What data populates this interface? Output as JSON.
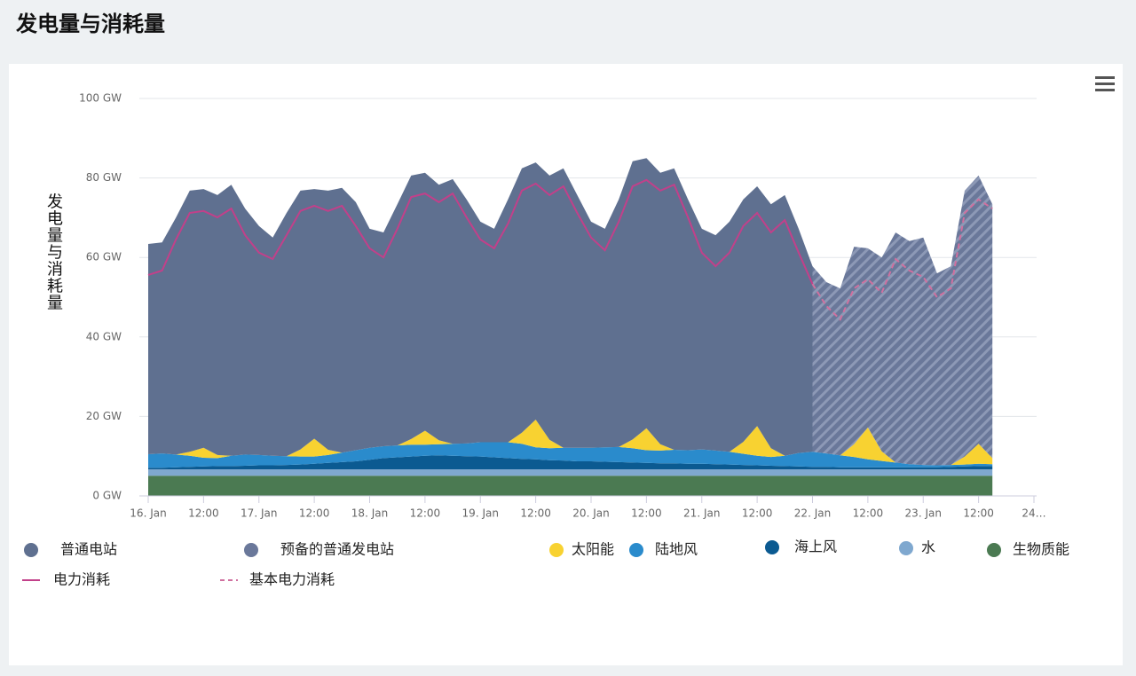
{
  "chart_data": {
    "type": "area",
    "stacked": true,
    "title": "发电量与消耗量",
    "y_label": "发电量与消耗量",
    "grid": true,
    "xlim": [
      "16. Jan 00:00",
      "24. Jan 00:00"
    ],
    "xticks": [
      {
        "value": "16. Jan 00:00",
        "label": "16. Jan"
      },
      {
        "value": "16. Jan 12:00",
        "label": "12:00"
      },
      {
        "value": "17. Jan 00:00",
        "label": "17. Jan"
      },
      {
        "value": "17. Jan 12:00",
        "label": "12:00"
      },
      {
        "value": "18. Jan 00:00",
        "label": "18. Jan"
      },
      {
        "value": "18. Jan 12:00",
        "label": "12:00"
      },
      {
        "value": "19. Jan 00:00",
        "label": "19. Jan"
      },
      {
        "value": "19. Jan 12:00",
        "label": "12:00"
      },
      {
        "value": "20. Jan 00:00",
        "label": "20. Jan"
      },
      {
        "value": "20. Jan 12:00",
        "label": "12:00"
      },
      {
        "value": "21. Jan 00:00",
        "label": "21. Jan"
      },
      {
        "value": "21. Jan 12:00",
        "label": "12:00"
      },
      {
        "value": "22. Jan 00:00",
        "label": "22. Jan"
      },
      {
        "value": "22. Jan 12:00",
        "label": "12:00"
      },
      {
        "value": "23. Jan 00:00",
        "label": "23. Jan"
      },
      {
        "value": "23. Jan 12:00",
        "label": "12:00"
      },
      {
        "value": "24. Jan 00:00",
        "label": "24…"
      }
    ],
    "ylim": [
      0,
      100
    ],
    "yticks": [
      {
        "value": 0,
        "label": "0 GW"
      },
      {
        "value": 20,
        "label": "20 GW"
      },
      {
        "value": 40,
        "label": "40 GW"
      },
      {
        "value": 60,
        "label": "60 GW"
      },
      {
        "value": 80,
        "label": "80 GW"
      },
      {
        "value": 100,
        "label": "100 GW"
      }
    ],
    "x": [
      "16. Jan 00:00",
      "16. Jan 03:00",
      "16. Jan 06:00",
      "16. Jan 09:00",
      "16. Jan 12:00",
      "16. Jan 15:00",
      "16. Jan 18:00",
      "16. Jan 21:00",
      "17. Jan 00:00",
      "17. Jan 03:00",
      "17. Jan 06:00",
      "17. Jan 09:00",
      "17. Jan 12:00",
      "17. Jan 15:00",
      "17. Jan 18:00",
      "17. Jan 21:00",
      "18. Jan 00:00",
      "18. Jan 03:00",
      "18. Jan 06:00",
      "18. Jan 09:00",
      "18. Jan 12:00",
      "18. Jan 15:00",
      "18. Jan 18:00",
      "18. Jan 21:00",
      "19. Jan 00:00",
      "19. Jan 03:00",
      "19. Jan 06:00",
      "19. Jan 09:00",
      "19. Jan 12:00",
      "19. Jan 15:00",
      "19. Jan 18:00",
      "19. Jan 21:00",
      "20. Jan 00:00",
      "20. Jan 03:00",
      "20. Jan 06:00",
      "20. Jan 09:00",
      "20. Jan 12:00",
      "20. Jan 15:00",
      "20. Jan 18:00",
      "20. Jan 21:00",
      "21. Jan 00:00",
      "21. Jan 03:00",
      "21. Jan 06:00",
      "21. Jan 09:00",
      "21. Jan 12:00",
      "21. Jan 15:00",
      "21. Jan 18:00",
      "21. Jan 21:00",
      "22. Jan 00:00",
      "22. Jan 03:00",
      "22. Jan 06:00",
      "22. Jan 09:00",
      "22. Jan 12:00",
      "22. Jan 15:00",
      "22. Jan 18:00",
      "22. Jan 21:00",
      "23. Jan 00:00",
      "23. Jan 03:00",
      "23. Jan 06:00",
      "23. Jan 09:00",
      "23. Jan 12:00",
      "23. Jan 15:00"
    ],
    "series": [
      {
        "name": "普通电站",
        "type": "area",
        "color": "#5f7090",
        "values": [
          52.9,
          53.1,
          59.6,
          65.7,
          65.1,
          65.4,
          68.2,
          61.9,
          57.6,
          54.9,
          61.2,
          65.1,
          62.8,
          65.2,
          66.6,
          62.4,
          55.1,
          53.8,
          60.7,
          66.3,
          64.9,
          64.3,
          66.6,
          61.4,
          55.5,
          53.7,
          61.1,
          66.5,
          64.7,
          66.5,
          70.3,
          63.6,
          56.9,
          55,
          62.3,
          70,
          68,
          68.3,
          70.8,
          63.1,
          55.5,
          54.2,
          57.9,
          61,
          60.3,
          61.4,
          65.6,
          56.4,
          46.7,
          null,
          null,
          null,
          null,
          null,
          null,
          null,
          null,
          null,
          null,
          null,
          null,
          null
        ]
      },
      {
        "name": "预备的普通发电站",
        "type": "area",
        "color": "#6a789a",
        "pattern": "hatched",
        "replaces": "普通电站",
        "values": [
          null,
          null,
          null,
          null,
          null,
          null,
          null,
          null,
          null,
          null,
          null,
          null,
          null,
          null,
          null,
          null,
          null,
          null,
          null,
          null,
          null,
          null,
          null,
          null,
          null,
          null,
          null,
          null,
          null,
          null,
          null,
          null,
          null,
          null,
          null,
          null,
          null,
          null,
          null,
          null,
          null,
          null,
          null,
          null,
          null,
          null,
          null,
          null,
          46.7,
          43.1,
          42,
          49.7,
          45.1,
          48.8,
          57.9,
          56.1,
          57.2,
          48.3,
          50,
          66.9,
          67.5,
          63.9
        ]
      },
      {
        "name": "太阳能",
        "type": "area",
        "color": "#f8d231",
        "values": [
          0,
          0,
          0,
          1,
          2.5,
          0.8,
          0,
          0,
          0,
          0,
          0,
          1.8,
          4.5,
          1.3,
          0,
          0,
          0,
          0,
          0,
          1.4,
          3.5,
          1,
          0,
          0,
          0,
          0,
          0,
          2.8,
          7,
          2.1,
          0,
          0,
          0,
          0,
          0,
          2.2,
          5.5,
          1.6,
          0,
          0,
          0,
          0,
          0,
          3,
          7.5,
          2.2,
          0,
          0,
          0,
          0,
          0,
          3.2,
          8,
          2.4,
          0,
          0,
          0,
          0,
          0,
          2,
          5,
          1.5
        ]
      },
      {
        "name": "陆地风",
        "type": "area",
        "color": "#2a8bcc",
        "values": [
          3.4,
          3.6,
          3.2,
          2.8,
          2.2,
          2,
          2.6,
          2.8,
          2.6,
          2.4,
          2.2,
          2,
          1.8,
          2,
          2.4,
          2.8,
          3,
          3,
          3,
          3,
          2.8,
          2.8,
          3,
          3.2,
          3.6,
          3.8,
          4,
          3.8,
          3,
          3,
          3.2,
          3.4,
          3.4,
          3.6,
          3.8,
          3.6,
          3.2,
          3.2,
          3.4,
          3.4,
          3.6,
          3.4,
          3.2,
          2.8,
          2.4,
          2.2,
          2.6,
          3.4,
          3.8,
          3.4,
          3,
          2.6,
          2,
          1.6,
          1.2,
          0.8,
          0.6,
          0.5,
          0.5,
          0.5,
          0.6,
          0.5
        ]
      },
      {
        "name": "海上风",
        "type": "area",
        "color": "#0b5a91",
        "values": [
          0.4,
          0.4,
          0.5,
          0.6,
          0.7,
          0.8,
          0.8,
          0.9,
          1,
          1,
          1.1,
          1.2,
          1.4,
          1.6,
          1.8,
          2,
          2.4,
          2.8,
          3,
          3.2,
          3.4,
          3.5,
          3.4,
          3.3,
          3.2,
          3,
          2.8,
          2.6,
          2.5,
          2.3,
          2.2,
          2,
          2,
          1.9,
          1.8,
          1.7,
          1.6,
          1.5,
          1.5,
          1.4,
          1.4,
          1.3,
          1.2,
          1.1,
          1,
          0.9,
          0.8,
          0.7,
          0.6,
          0.6,
          0.5,
          0.5,
          0.5,
          0.5,
          0.5,
          0.5,
          0.5,
          0.5,
          0.6,
          0.7,
          0.8,
          0.8
        ]
      },
      {
        "name": "水",
        "type": "area",
        "color": "#7fa8cf",
        "values": [
          1.6,
          1.6,
          1.6,
          1.6,
          1.6,
          1.6,
          1.6,
          1.6,
          1.6,
          1.6,
          1.6,
          1.6,
          1.6,
          1.6,
          1.6,
          1.6,
          1.6,
          1.6,
          1.6,
          1.6,
          1.6,
          1.6,
          1.6,
          1.6,
          1.6,
          1.6,
          1.6,
          1.6,
          1.6,
          1.6,
          1.6,
          1.6,
          1.6,
          1.6,
          1.6,
          1.6,
          1.6,
          1.6,
          1.6,
          1.6,
          1.6,
          1.6,
          1.6,
          1.6,
          1.6,
          1.6,
          1.6,
          1.6,
          1.6,
          1.6,
          1.6,
          1.6,
          1.6,
          1.6,
          1.6,
          1.6,
          1.6,
          1.6,
          1.6,
          1.6,
          1.6,
          1.6
        ]
      },
      {
        "name": "生物质能",
        "type": "area",
        "color": "#4b7a52",
        "values": [
          5.1,
          5.1,
          5.1,
          5.1,
          5.1,
          5.1,
          5.1,
          5.1,
          5.1,
          5.1,
          5.1,
          5.1,
          5.1,
          5.1,
          5.1,
          5.1,
          5.1,
          5.1,
          5.1,
          5.1,
          5.1,
          5.1,
          5.1,
          5.1,
          5.1,
          5.1,
          5.1,
          5.1,
          5.1,
          5.1,
          5.1,
          5.1,
          5.1,
          5.1,
          5.1,
          5.1,
          5.1,
          5.1,
          5.1,
          5.1,
          5.1,
          5.1,
          5.1,
          5.1,
          5.1,
          5.1,
          5.1,
          5.1,
          5.1,
          5.1,
          5.1,
          5.1,
          5.1,
          5.1,
          5.1,
          5.1,
          5.1,
          5.1,
          5.1,
          5.1,
          5.1,
          5.1
        ]
      },
      {
        "name": "电力消耗",
        "type": "line",
        "color": "#c2408a",
        "values": [
          55.6,
          56.7,
          64.5,
          71.2,
          71.7,
          70.1,
          72.3,
          65.6,
          61.2,
          59.6,
          65.6,
          71.7,
          73,
          71.7,
          73,
          67.9,
          62.3,
          60,
          67.2,
          75.2,
          76.1,
          73.9,
          76.1,
          70.1,
          64.5,
          62.3,
          68.5,
          76.8,
          78.6,
          75.7,
          77.9,
          71.2,
          65,
          61.8,
          69,
          77.9,
          79.5,
          76.8,
          78.3,
          70.1,
          61.2,
          57.8,
          61.2,
          67.9,
          71.2,
          66.3,
          69.4,
          61.2,
          53.3,
          null,
          null,
          null,
          null,
          null,
          null,
          null,
          null,
          null,
          null,
          null,
          null,
          null
        ]
      },
      {
        "name": "基本电力消耗",
        "type": "line",
        "color": "#d0709f",
        "dashed": true,
        "values": [
          null,
          null,
          null,
          null,
          null,
          null,
          null,
          null,
          null,
          null,
          null,
          null,
          null,
          null,
          null,
          null,
          null,
          null,
          null,
          null,
          null,
          null,
          null,
          null,
          null,
          null,
          null,
          null,
          null,
          null,
          null,
          null,
          null,
          null,
          null,
          null,
          null,
          null,
          null,
          null,
          null,
          null,
          null,
          null,
          null,
          null,
          null,
          null,
          53.3,
          47.8,
          44.4,
          52.2,
          54.5,
          51.1,
          59.6,
          56.7,
          55.1,
          50,
          52.2,
          71.2,
          74.6,
          72.3
        ]
      }
    ]
  }
}
